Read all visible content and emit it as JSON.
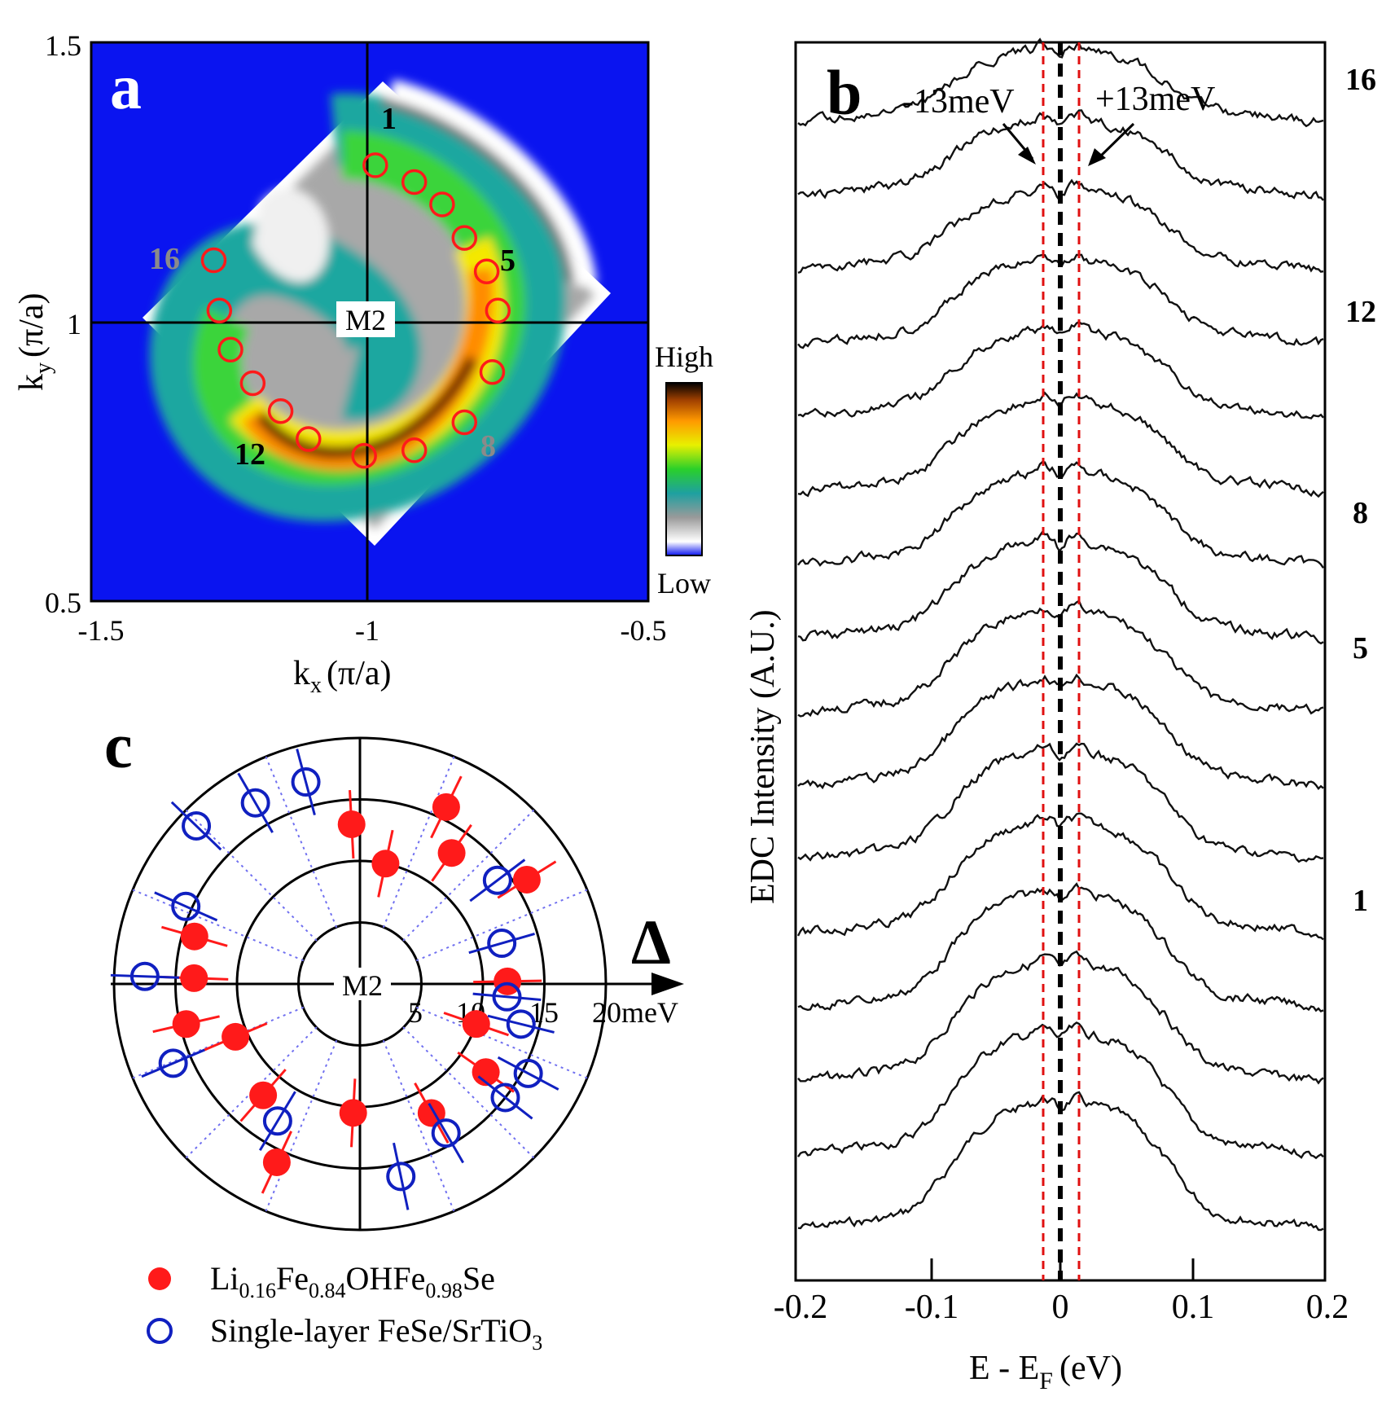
{
  "panel_a": {
    "letter": "a",
    "xlabel": "k",
    "xlabel_sub": "x",
    "xlabel_unit": "(π/a)",
    "ylabel": "k",
    "ylabel_sub": "y",
    "ylabel_unit": "(π/a)",
    "xticks": [
      "-1.5",
      "-1",
      "-0.5"
    ],
    "yticks": [
      "1.5",
      "1",
      "0.5"
    ],
    "point_label": "M2",
    "colorbar_high": "High",
    "colorbar_low": "Low",
    "cut_labels": [
      "1",
      "5",
      "8",
      "12",
      "16"
    ],
    "colors": {
      "background": "#0a14f0",
      "circles": "#ff1a1a"
    }
  },
  "panel_b": {
    "letter": "b",
    "xlabel": "E - E",
    "xlabel_sub": "F",
    "xlabel_unit": "(eV)",
    "ylabel": "EDC Intensity (A.U.)",
    "xticks": [
      "-0.2",
      "-0.1",
      "0",
      "0.1",
      "0.2"
    ],
    "annotation_left": "-13meV",
    "annotation_right": "+13meV",
    "curve_labels": [
      "16",
      "12",
      "8",
      "5",
      "1"
    ]
  },
  "panel_c": {
    "letter": "c",
    "center_label": "M2",
    "axis_label": "Δ",
    "ring_labels": [
      "5",
      "10",
      "15",
      "20meV"
    ],
    "legend": [
      {
        "label_main": "Li",
        "sub1": "0.16",
        "mid1": "Fe",
        "sub2": "0.84",
        "mid2": "OHFe",
        "sub3": "0.98",
        "end": "Se",
        "color": "#ff1a1a",
        "style": "filled"
      },
      {
        "label_main": "Single-layer FeSe/SrTiO",
        "sub1": "3",
        "color": "#1020c0",
        "style": "open"
      }
    ]
  },
  "chart_data": [
    {
      "type": "heatmap",
      "title": "a",
      "xlabel": "kx (π/a)",
      "ylabel": "ky (π/a)",
      "xlim": [
        -1.5,
        -0.5
      ],
      "ylim": [
        0.5,
        1.5
      ],
      "colorbar": [
        "Low",
        "High"
      ],
      "cut_points": [
        {
          "id": 1,
          "kx": -0.99,
          "ky": 1.28
        },
        {
          "id": 2,
          "kx": -0.92,
          "ky": 1.25
        },
        {
          "id": 3,
          "kx": -0.87,
          "ky": 1.21
        },
        {
          "id": 4,
          "kx": -0.83,
          "ky": 1.15
        },
        {
          "id": 5,
          "kx": -0.79,
          "ky": 1.09
        },
        {
          "id": 6,
          "kx": -0.77,
          "ky": 1.02
        },
        {
          "id": 7,
          "kx": -0.78,
          "ky": 0.91
        },
        {
          "id": 8,
          "kx": -0.83,
          "ky": 0.82
        },
        {
          "id": 9,
          "kx": -0.92,
          "ky": 0.77
        },
        {
          "id": 10,
          "kx": -1.01,
          "ky": 0.76
        },
        {
          "id": 11,
          "kx": -1.11,
          "ky": 0.79
        },
        {
          "id": 12,
          "kx": -1.16,
          "ky": 0.84
        },
        {
          "id": 13,
          "kx": -1.21,
          "ky": 0.89
        },
        {
          "id": 14,
          "kx": -1.25,
          "ky": 0.95
        },
        {
          "id": 15,
          "kx": -1.27,
          "ky": 1.02
        },
        {
          "id": 16,
          "kx": -1.28,
          "ky": 1.11
        }
      ]
    },
    {
      "type": "line",
      "title": "b",
      "xlabel": "E - EF (eV)",
      "ylabel": "EDC Intensity (A.U.)",
      "xlim": [
        -0.2,
        0.2
      ],
      "series_count": 16,
      "series_labels": [
        "1",
        "5",
        "8",
        "12",
        "16"
      ],
      "gap_markers_eV": [
        -0.013,
        0,
        0.013
      ]
    },
    {
      "type": "scatter",
      "title": "c",
      "coordinate": "polar",
      "radial_label": "Δ (meV)",
      "ring_values": [
        5,
        10,
        15,
        20
      ],
      "series": [
        {
          "name": "Li0.16Fe0.84OHFe0.98Se",
          "points": [
            {
              "angle_deg": 93,
              "gap": 13
            },
            {
              "angle_deg": 78,
              "gap": 10
            },
            {
              "angle_deg": 64,
              "gap": 16
            },
            {
              "angle_deg": 55,
              "gap": 13
            },
            {
              "angle_deg": 32,
              "gap": 16
            },
            {
              "angle_deg": 1,
              "gap": 12
            },
            {
              "angle_deg": -19,
              "gap": 10
            },
            {
              "angle_deg": -35,
              "gap": 12.5
            },
            {
              "angle_deg": -61,
              "gap": 12
            },
            {
              "angle_deg": -93,
              "gap": 10.5
            },
            {
              "angle_deg": -131,
              "gap": 12
            },
            {
              "angle_deg": -157,
              "gap": 11
            },
            {
              "angle_deg": -115,
              "gap": 16
            },
            {
              "angle_deg": -167,
              "gap": 14.5
            },
            {
              "angle_deg": 178,
              "gap": 13.5
            },
            {
              "angle_deg": 164,
              "gap": 14
            }
          ]
        },
        {
          "name": "Single-layer FeSe/SrTiO3",
          "points": [
            {
              "angle_deg": 105,
              "gap": 17
            },
            {
              "angle_deg": 120,
              "gap": 17
            },
            {
              "angle_deg": 136,
              "gap": 18.5
            },
            {
              "angle_deg": 156,
              "gap": 15.5
            },
            {
              "angle_deg": 178,
              "gap": 17.5
            },
            {
              "angle_deg": -157,
              "gap": 16.5
            },
            {
              "angle_deg": -121,
              "gap": 13
            },
            {
              "angle_deg": -78,
              "gap": 16
            },
            {
              "angle_deg": -60,
              "gap": 14
            },
            {
              "angle_deg": -38,
              "gap": 15
            },
            {
              "angle_deg": -28,
              "gap": 15.5
            },
            {
              "angle_deg": -14,
              "gap": 13.5
            },
            {
              "angle_deg": -5,
              "gap": 12
            },
            {
              "angle_deg": 16,
              "gap": 12
            },
            {
              "angle_deg": 37,
              "gap": 14
            }
          ]
        }
      ]
    }
  ]
}
